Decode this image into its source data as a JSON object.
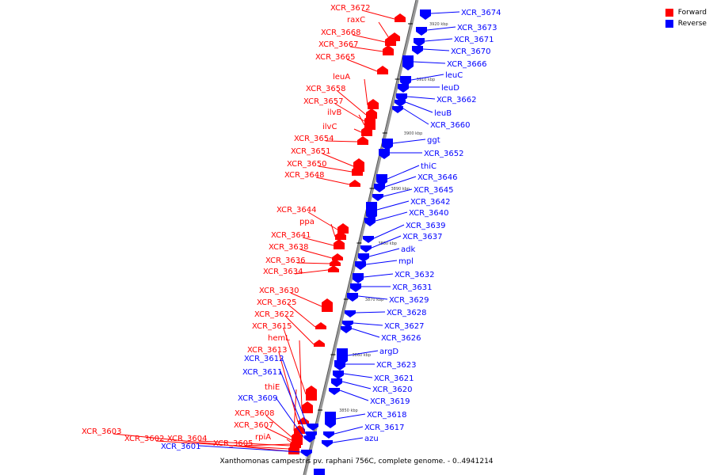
{
  "colors": {
    "forward": "#ff0000",
    "reverse": "#0000ff",
    "axis": "#777777"
  },
  "legend": {
    "forward_label": "Forward",
    "reverse_label": "Reverse"
  },
  "caption": "Xanthomonas campestris pv. raphani 756C, complete genome. - 0..4941214",
  "ticks": [
    "3920 kbp",
    "3910 kbp",
    "3900 kbp",
    "3890 kbp",
    "3880 kbp",
    "3870 kbp",
    "3860 kbp",
    "3850 kbp"
  ],
  "forward_genes": [
    "XCR_3672",
    "raxC",
    "XCR_3668",
    "XCR_3667",
    "XCR_3665",
    "leuA",
    "XCR_3658",
    "XCR_3657",
    "ilvB",
    "ilvC",
    "XCR_3654",
    "XCR_3651",
    "XCR_3650",
    "XCR_3648",
    "XCR_3644",
    "ppa",
    "XCR_3641",
    "XCR_3638",
    "XCR_3636",
    "XCR_3634",
    "XCR_3630",
    "XCR_3625",
    "XCR_3622",
    "XCR_3615",
    "hemL",
    "XCR_3613",
    "thiE",
    "XCR_3608",
    "XCR_3607",
    "rpiA",
    "XCR_3605",
    "XCR_3604",
    "XCR_3603",
    "XCR_3602"
  ],
  "reverse_genes": [
    "XCR_3674",
    "XCR_3673",
    "XCR_3671",
    "XCR_3670",
    "XCR_3666",
    "leuC",
    "leuD",
    "XCR_3662",
    "leuB",
    "XCR_3660",
    "ggt",
    "XCR_3652",
    "thiC",
    "XCR_3646",
    "XCR_3645",
    "XCR_3642",
    "XCR_3640",
    "XCR_3639",
    "XCR_3637",
    "adk",
    "mpl",
    "XCR_3632",
    "XCR_3631",
    "XCR_3629",
    "XCR_3628",
    "XCR_3627",
    "XCR_3626",
    "argD",
    "XCR_3623",
    "XCR_3621",
    "XCR_3620",
    "XCR_3619",
    "XCR_3618",
    "XCR_3617",
    "azu",
    "XCR_3612",
    "XCR_3611",
    "XCR_3609",
    "XCR_3601"
  ]
}
